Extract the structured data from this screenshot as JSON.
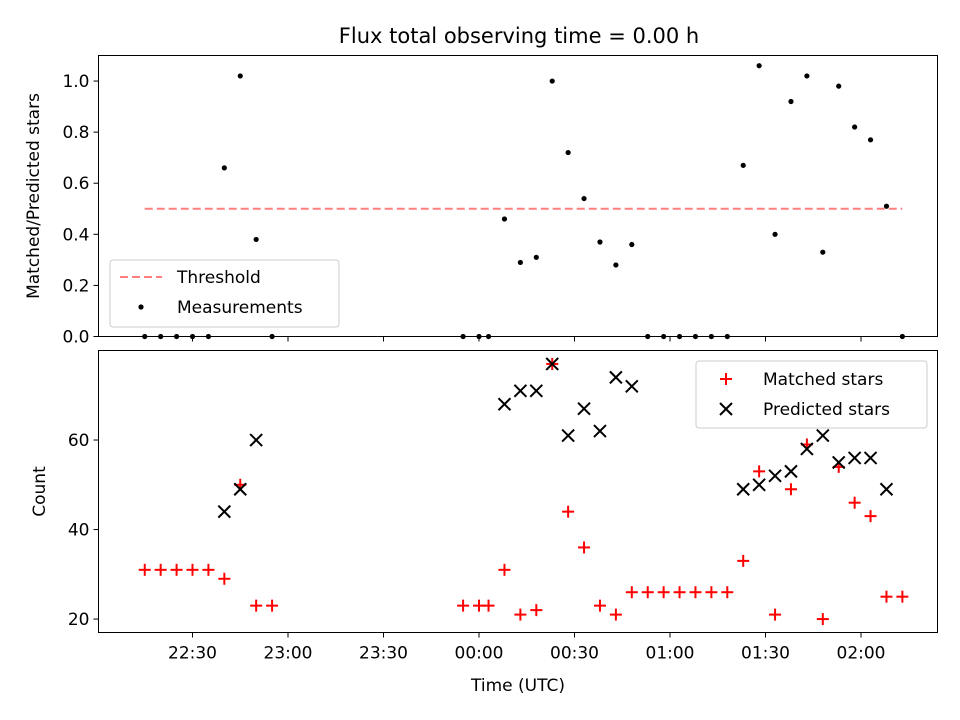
{
  "title": "Flux total observing time = 0.00 h",
  "chart_data": [
    {
      "type": "scatter",
      "ylabel": "Matched/Predicted stars",
      "ylim": [
        0,
        1.1
      ],
      "yticks": [
        "0.0",
        "0.2",
        "0.4",
        "0.6",
        "0.8",
        "1.0"
      ],
      "legend_position": "lower-left",
      "threshold": {
        "name": "Threshold",
        "value": 0.5,
        "x_start": "22:15",
        "x_end": "02:13",
        "color": "#ff7f7f"
      },
      "series": [
        {
          "name": "Measurements",
          "color": "#000000",
          "points": [
            [
              "22:15",
              0.0
            ],
            [
              "22:20",
              0.0
            ],
            [
              "22:25",
              0.0
            ],
            [
              "22:30",
              0.0
            ],
            [
              "22:35",
              0.0
            ],
            [
              "22:40",
              0.66
            ],
            [
              "22:45",
              1.02
            ],
            [
              "22:50",
              0.38
            ],
            [
              "22:55",
              0.0
            ],
            [
              "23:55",
              0.0
            ],
            [
              "00:00",
              0.0
            ],
            [
              "00:03",
              0.0
            ],
            [
              "00:08",
              0.46
            ],
            [
              "00:13",
              0.29
            ],
            [
              "00:18",
              0.31
            ],
            [
              "00:23",
              1.0
            ],
            [
              "00:28",
              0.72
            ],
            [
              "00:33",
              0.54
            ],
            [
              "00:38",
              0.37
            ],
            [
              "00:43",
              0.28
            ],
            [
              "00:48",
              0.36
            ],
            [
              "00:53",
              0.0
            ],
            [
              "00:58",
              0.0
            ],
            [
              "01:03",
              0.0
            ],
            [
              "01:08",
              0.0
            ],
            [
              "01:13",
              0.0
            ],
            [
              "01:18",
              0.0
            ],
            [
              "01:23",
              0.67
            ],
            [
              "01:28",
              1.06
            ],
            [
              "01:33",
              0.4
            ],
            [
              "01:38",
              0.92
            ],
            [
              "01:43",
              1.02
            ],
            [
              "01:48",
              0.33
            ],
            [
              "01:53",
              0.98
            ],
            [
              "01:58",
              0.82
            ],
            [
              "02:03",
              0.77
            ],
            [
              "02:08",
              0.51
            ],
            [
              "02:13",
              0.0
            ]
          ]
        }
      ]
    },
    {
      "type": "scatter",
      "xlabel": "Time (UTC)",
      "ylabel": "Count",
      "ylim": [
        17,
        80
      ],
      "yticks": [
        "20",
        "40",
        "60"
      ],
      "xticks": [
        "22:30",
        "23:00",
        "23:30",
        "00:00",
        "00:30",
        "01:00",
        "01:30",
        "02:00"
      ],
      "legend_position": "upper-right",
      "series": [
        {
          "name": "Matched stars",
          "color": "#ff0000",
          "marker": "plus",
          "points": [
            [
              "22:15",
              31
            ],
            [
              "22:20",
              31
            ],
            [
              "22:25",
              31
            ],
            [
              "22:30",
              31
            ],
            [
              "22:35",
              31
            ],
            [
              "22:40",
              29
            ],
            [
              "22:45",
              50
            ],
            [
              "22:50",
              23
            ],
            [
              "22:55",
              23
            ],
            [
              "23:55",
              23
            ],
            [
              "00:00",
              23
            ],
            [
              "00:03",
              23
            ],
            [
              "00:08",
              31
            ],
            [
              "00:13",
              21
            ],
            [
              "00:18",
              22
            ],
            [
              "00:23",
              77
            ],
            [
              "00:28",
              44
            ],
            [
              "00:33",
              36
            ],
            [
              "00:38",
              23
            ],
            [
              "00:43",
              21
            ],
            [
              "00:48",
              26
            ],
            [
              "00:53",
              26
            ],
            [
              "00:58",
              26
            ],
            [
              "01:03",
              26
            ],
            [
              "01:08",
              26
            ],
            [
              "01:13",
              26
            ],
            [
              "01:18",
              26
            ],
            [
              "01:23",
              33
            ],
            [
              "01:28",
              53
            ],
            [
              "01:33",
              21
            ],
            [
              "01:38",
              49
            ],
            [
              "01:43",
              59
            ],
            [
              "01:48",
              20
            ],
            [
              "01:53",
              54
            ],
            [
              "01:58",
              46
            ],
            [
              "02:03",
              43
            ],
            [
              "02:08",
              25
            ],
            [
              "02:13",
              25
            ]
          ]
        },
        {
          "name": "Predicted stars",
          "color": "#000000",
          "marker": "x",
          "points": [
            [
              "22:40",
              44
            ],
            [
              "22:45",
              49
            ],
            [
              "22:50",
              60
            ],
            [
              "00:08",
              68
            ],
            [
              "00:13",
              71
            ],
            [
              "00:18",
              71
            ],
            [
              "00:23",
              77
            ],
            [
              "00:28",
              61
            ],
            [
              "00:33",
              67
            ],
            [
              "00:38",
              62
            ],
            [
              "00:43",
              74
            ],
            [
              "00:48",
              72
            ],
            [
              "01:23",
              49
            ],
            [
              "01:28",
              50
            ],
            [
              "01:33",
              52
            ],
            [
              "01:38",
              53
            ],
            [
              "01:43",
              58
            ],
            [
              "01:48",
              61
            ],
            [
              "01:53",
              55
            ],
            [
              "01:58",
              56
            ],
            [
              "02:03",
              56
            ],
            [
              "02:08",
              49
            ]
          ]
        }
      ]
    }
  ]
}
